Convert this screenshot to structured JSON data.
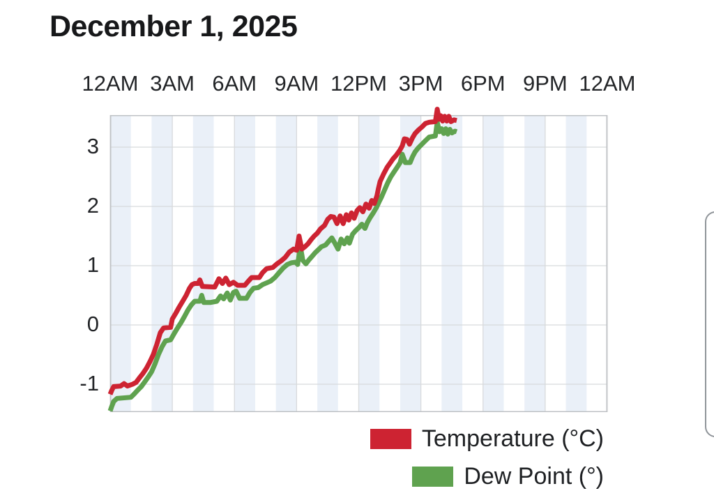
{
  "page": {
    "title": "December 1, 2025"
  },
  "chart_data": {
    "type": "line",
    "title": "December 1, 2025",
    "x_axis": {
      "position": "top",
      "tick_labels": [
        "12AM",
        "3AM",
        "6AM",
        "9AM",
        "12PM",
        "3PM",
        "6PM",
        "9PM",
        "12AM"
      ],
      "tick_hours": [
        0,
        3,
        6,
        9,
        12,
        15,
        18,
        21,
        24
      ],
      "range_hours": [
        0,
        24
      ],
      "stripes": "alternating 1-hour vertical bands, even hours shaded"
    },
    "y_axis": {
      "tick_labels": [
        "3",
        "2",
        "1",
        "0",
        "-1"
      ],
      "tick_values": [
        3,
        2,
        1,
        0,
        -1
      ],
      "range": [
        -1.47,
        3.52
      ]
    },
    "grid": true,
    "legend_position": "bottom-right",
    "series": [
      {
        "name": "Temperature (°C)",
        "color": "#cd2332",
        "points": [
          [
            0,
            -1.17
          ],
          [
            0.08,
            -1.1
          ],
          [
            0.17,
            -1.04
          ],
          [
            0.5,
            -1.03
          ],
          [
            0.67,
            -0.99
          ],
          [
            0.83,
            -1.03
          ],
          [
            1.08,
            -1.0
          ],
          [
            1.25,
            -0.97
          ],
          [
            1.42,
            -0.89
          ],
          [
            1.58,
            -0.82
          ],
          [
            1.75,
            -0.73
          ],
          [
            1.92,
            -0.62
          ],
          [
            2.08,
            -0.5
          ],
          [
            2.25,
            -0.33
          ],
          [
            2.42,
            -0.13
          ],
          [
            2.58,
            -0.05
          ],
          [
            2.92,
            -0.04
          ],
          [
            3.0,
            0.1
          ],
          [
            3.17,
            0.2
          ],
          [
            3.33,
            0.3
          ],
          [
            3.5,
            0.4
          ],
          [
            3.67,
            0.5
          ],
          [
            3.83,
            0.62
          ],
          [
            3.95,
            0.68
          ],
          [
            4.08,
            0.7
          ],
          [
            4.25,
            0.7
          ],
          [
            4.33,
            0.76
          ],
          [
            4.45,
            0.65
          ],
          [
            5.05,
            0.64
          ],
          [
            5.25,
            0.78
          ],
          [
            5.42,
            0.7
          ],
          [
            5.58,
            0.79
          ],
          [
            5.75,
            0.68
          ],
          [
            5.95,
            0.72
          ],
          [
            6.15,
            0.67
          ],
          [
            6.5,
            0.67
          ],
          [
            6.67,
            0.74
          ],
          [
            6.83,
            0.8
          ],
          [
            7.2,
            0.8
          ],
          [
            7.35,
            0.88
          ],
          [
            7.55,
            0.95
          ],
          [
            7.85,
            0.97
          ],
          [
            8.05,
            1.03
          ],
          [
            8.25,
            1.08
          ],
          [
            8.45,
            1.14
          ],
          [
            8.65,
            1.23
          ],
          [
            8.85,
            1.28
          ],
          [
            9.0,
            1.26
          ],
          [
            9.12,
            1.5
          ],
          [
            9.25,
            1.28
          ],
          [
            9.4,
            1.32
          ],
          [
            9.55,
            1.37
          ],
          [
            9.7,
            1.44
          ],
          [
            9.85,
            1.5
          ],
          [
            10.0,
            1.55
          ],
          [
            10.15,
            1.62
          ],
          [
            10.35,
            1.68
          ],
          [
            10.5,
            1.78
          ],
          [
            10.65,
            1.83
          ],
          [
            10.8,
            1.82
          ],
          [
            10.95,
            1.71
          ],
          [
            11.1,
            1.84
          ],
          [
            11.25,
            1.71
          ],
          [
            11.4,
            1.86
          ],
          [
            11.52,
            1.77
          ],
          [
            11.65,
            1.89
          ],
          [
            11.78,
            1.8
          ],
          [
            11.92,
            1.93
          ],
          [
            12.05,
            1.98
          ],
          [
            12.2,
            1.91
          ],
          [
            12.35,
            2.04
          ],
          [
            12.5,
            1.97
          ],
          [
            12.63,
            2.1
          ],
          [
            12.75,
            2.05
          ],
          [
            12.88,
            2.18
          ],
          [
            12.95,
            2.3
          ],
          [
            13.03,
            2.42
          ],
          [
            13.2,
            2.55
          ],
          [
            13.37,
            2.66
          ],
          [
            13.53,
            2.74
          ],
          [
            13.65,
            2.8
          ],
          [
            13.8,
            2.86
          ],
          [
            13.97,
            2.94
          ],
          [
            14.1,
            3.02
          ],
          [
            14.2,
            3.14
          ],
          [
            14.33,
            3.13
          ],
          [
            14.45,
            3.05
          ],
          [
            14.6,
            3.16
          ],
          [
            14.72,
            3.23
          ],
          [
            14.88,
            3.29
          ],
          [
            15.05,
            3.34
          ],
          [
            15.22,
            3.4
          ],
          [
            15.4,
            3.42
          ],
          [
            15.7,
            3.43
          ],
          [
            15.79,
            3.64
          ],
          [
            15.88,
            3.47
          ],
          [
            15.96,
            3.53
          ],
          [
            16.05,
            3.44
          ],
          [
            16.15,
            3.52
          ],
          [
            16.25,
            3.44
          ],
          [
            16.35,
            3.52
          ],
          [
            16.45,
            3.43
          ],
          [
            16.6,
            3.46
          ],
          [
            16.73,
            3.45
          ]
        ]
      },
      {
        "name": "Dew Point (°)",
        "color": "#5fa24f",
        "points": [
          [
            0,
            -1.45
          ],
          [
            0.08,
            -1.37
          ],
          [
            0.17,
            -1.29
          ],
          [
            0.33,
            -1.24
          ],
          [
            1.0,
            -1.22
          ],
          [
            1.17,
            -1.16
          ],
          [
            1.33,
            -1.1
          ],
          [
            1.5,
            -1.04
          ],
          [
            1.67,
            -0.96
          ],
          [
            1.83,
            -0.88
          ],
          [
            2.0,
            -0.79
          ],
          [
            2.17,
            -0.65
          ],
          [
            2.33,
            -0.5
          ],
          [
            2.5,
            -0.37
          ],
          [
            2.67,
            -0.27
          ],
          [
            2.92,
            -0.25
          ],
          [
            3.08,
            -0.15
          ],
          [
            3.25,
            -0.05
          ],
          [
            3.42,
            0.04
          ],
          [
            3.58,
            0.14
          ],
          [
            3.75,
            0.25
          ],
          [
            3.92,
            0.34
          ],
          [
            4.08,
            0.4
          ],
          [
            4.33,
            0.4
          ],
          [
            4.42,
            0.5
          ],
          [
            4.52,
            0.38
          ],
          [
            4.85,
            0.38
          ],
          [
            5.15,
            0.4
          ],
          [
            5.33,
            0.49
          ],
          [
            5.48,
            0.44
          ],
          [
            5.65,
            0.54
          ],
          [
            5.8,
            0.42
          ],
          [
            5.95,
            0.55
          ],
          [
            6.08,
            0.57
          ],
          [
            6.25,
            0.45
          ],
          [
            6.58,
            0.45
          ],
          [
            6.75,
            0.55
          ],
          [
            6.92,
            0.62
          ],
          [
            7.15,
            0.63
          ],
          [
            7.35,
            0.68
          ],
          [
            7.55,
            0.71
          ],
          [
            7.75,
            0.74
          ],
          [
            7.95,
            0.8
          ],
          [
            8.15,
            0.88
          ],
          [
            8.35,
            0.96
          ],
          [
            8.55,
            1.02
          ],
          [
            8.75,
            1.05
          ],
          [
            8.95,
            1.06
          ],
          [
            9.05,
            1.02
          ],
          [
            9.18,
            1.33
          ],
          [
            9.3,
            1.09
          ],
          [
            9.45,
            1.03
          ],
          [
            9.6,
            1.1
          ],
          [
            9.75,
            1.16
          ],
          [
            9.9,
            1.22
          ],
          [
            10.05,
            1.27
          ],
          [
            10.2,
            1.32
          ],
          [
            10.4,
            1.35
          ],
          [
            10.55,
            1.41
          ],
          [
            10.7,
            1.47
          ],
          [
            10.85,
            1.38
          ],
          [
            11.0,
            1.28
          ],
          [
            11.15,
            1.45
          ],
          [
            11.3,
            1.37
          ],
          [
            11.45,
            1.47
          ],
          [
            11.55,
            1.38
          ],
          [
            11.7,
            1.53
          ],
          [
            11.85,
            1.59
          ],
          [
            12.0,
            1.64
          ],
          [
            12.15,
            1.7
          ],
          [
            12.3,
            1.63
          ],
          [
            12.42,
            1.73
          ],
          [
            12.55,
            1.81
          ],
          [
            12.7,
            1.89
          ],
          [
            12.85,
            1.98
          ],
          [
            13.0,
            2.09
          ],
          [
            13.1,
            2.16
          ],
          [
            13.25,
            2.28
          ],
          [
            13.4,
            2.4
          ],
          [
            13.55,
            2.5
          ],
          [
            13.7,
            2.58
          ],
          [
            13.85,
            2.66
          ],
          [
            14.0,
            2.74
          ],
          [
            14.1,
            2.88
          ],
          [
            14.25,
            2.74
          ],
          [
            14.48,
            2.74
          ],
          [
            14.6,
            2.84
          ],
          [
            14.72,
            2.92
          ],
          [
            14.88,
            2.99
          ],
          [
            15.05,
            3.05
          ],
          [
            15.22,
            3.11
          ],
          [
            15.4,
            3.17
          ],
          [
            15.7,
            3.19
          ],
          [
            15.79,
            3.42
          ],
          [
            15.9,
            3.26
          ],
          [
            16.0,
            3.31
          ],
          [
            16.1,
            3.23
          ],
          [
            16.2,
            3.31
          ],
          [
            16.3,
            3.22
          ],
          [
            16.4,
            3.3
          ],
          [
            16.5,
            3.24
          ],
          [
            16.65,
            3.27
          ],
          [
            16.73,
            3.26
          ]
        ]
      }
    ],
    "colors": {
      "stripe": "#eaf0f8",
      "grid": "#d8dadc",
      "border": "#bfc2c5",
      "text": "#222427"
    }
  },
  "legend": {
    "items": [
      {
        "label": "Temperature (°C)",
        "color": "#cd2332"
      },
      {
        "label": "Dew Point (°)",
        "color": "#5fa24f"
      }
    ]
  }
}
